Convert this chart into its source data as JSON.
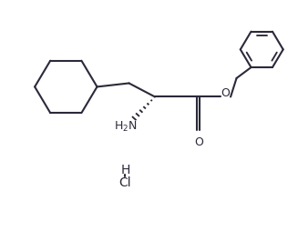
{
  "background": "#ffffff",
  "line_color": "#2a2a3a",
  "line_width": 1.5,
  "fig_width": 3.27,
  "fig_height": 2.54,
  "dpi": 100,
  "xlim": [
    0,
    10
  ],
  "ylim": [
    0,
    8
  ]
}
